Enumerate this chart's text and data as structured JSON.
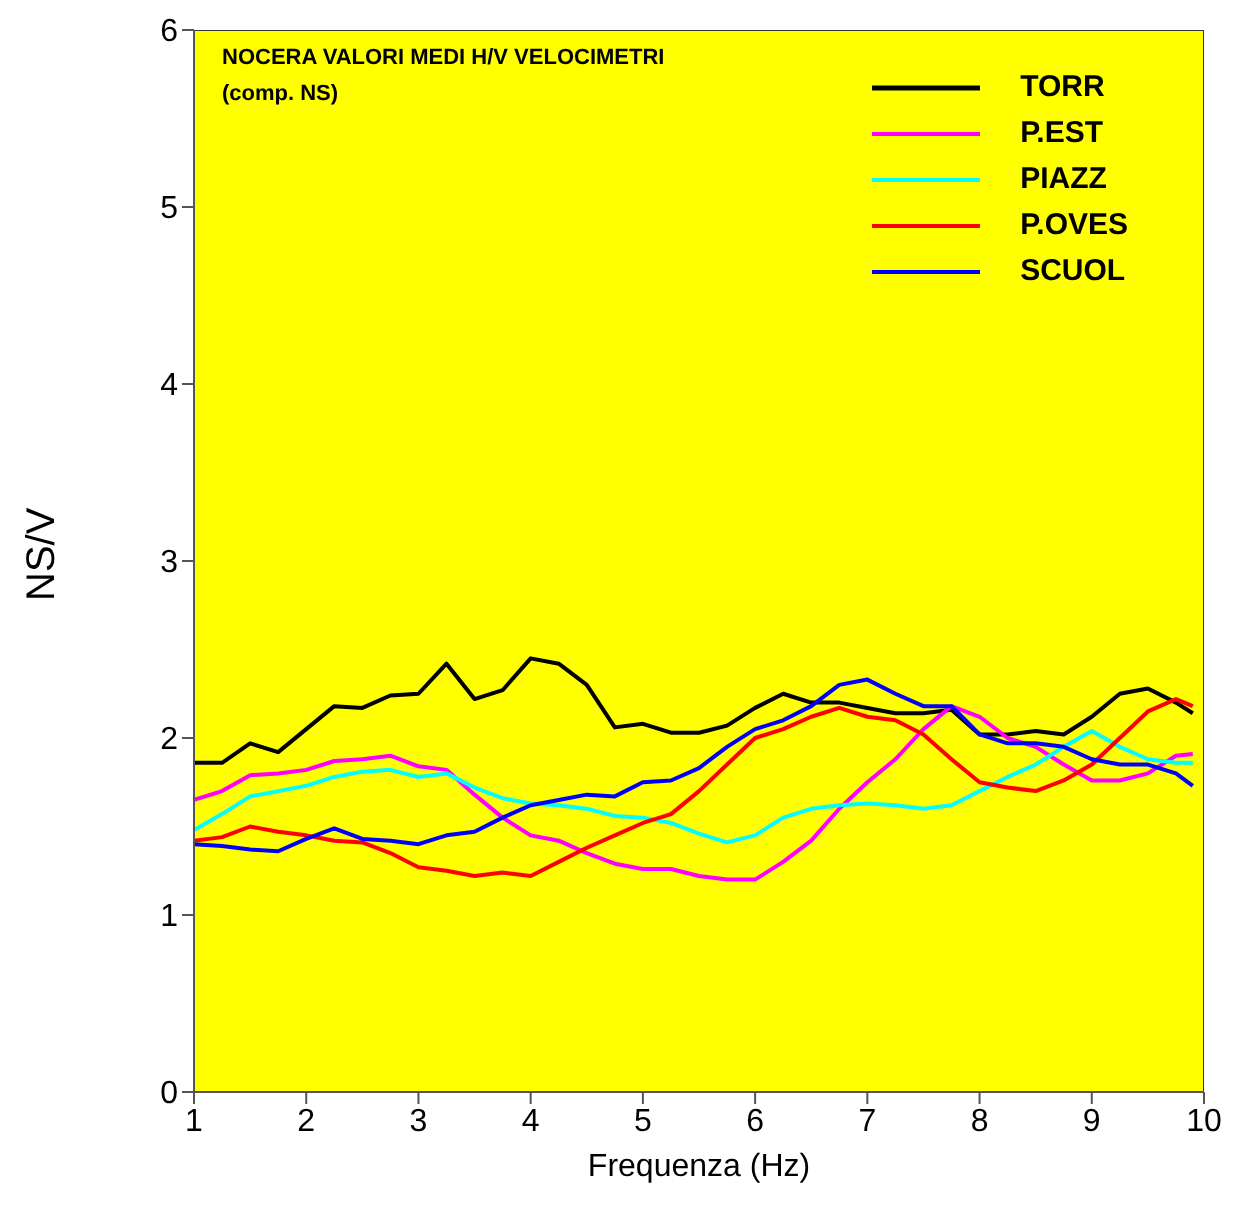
{
  "chart_data": {
    "type": "line",
    "title": "NOCERA VALORI MEDI H/V VELOCIMETRI",
    "subtitle": "(comp. NS)",
    "xlabel": "Frequenza (Hz)",
    "ylabel": "NS/V",
    "x": [
      1,
      1.25,
      1.5,
      1.75,
      2,
      2.25,
      2.5,
      2.75,
      3,
      3.25,
      3.5,
      3.75,
      4,
      4.25,
      4.5,
      4.75,
      5,
      5.25,
      5.5,
      5.75,
      6,
      6.25,
      6.5,
      6.75,
      7,
      7.25,
      7.5,
      7.75,
      8,
      8.25,
      8.5,
      8.75,
      9,
      9.25,
      9.5,
      9.75,
      9.9
    ],
    "series": [
      {
        "name": "TORR",
        "color": "#000000",
        "values": [
          1.86,
          1.86,
          1.97,
          1.92,
          2.05,
          2.18,
          2.17,
          2.24,
          2.25,
          2.42,
          2.22,
          2.27,
          2.45,
          2.42,
          2.3,
          2.06,
          2.08,
          2.03,
          2.03,
          2.07,
          2.17,
          2.25,
          2.2,
          2.2,
          2.17,
          2.14,
          2.14,
          2.16,
          2.02,
          2.02,
          2.04,
          2.02,
          2.12,
          2.25,
          2.28,
          2.2,
          2.14
        ]
      },
      {
        "name": "P.EST",
        "color": "#ff00ff",
        "values": [
          1.65,
          1.7,
          1.79,
          1.8,
          1.82,
          1.87,
          1.88,
          1.9,
          1.84,
          1.82,
          1.68,
          1.55,
          1.45,
          1.42,
          1.35,
          1.29,
          1.26,
          1.26,
          1.22,
          1.2,
          1.2,
          1.3,
          1.42,
          1.6,
          1.75,
          1.88,
          2.05,
          2.18,
          2.12,
          2.0,
          1.95,
          1.85,
          1.76,
          1.76,
          1.8,
          1.9,
          1.91
        ]
      },
      {
        "name": "PIAZZ",
        "color": "#00ffff",
        "values": [
          1.48,
          1.57,
          1.67,
          1.7,
          1.73,
          1.78,
          1.81,
          1.82,
          1.78,
          1.8,
          1.72,
          1.66,
          1.63,
          1.62,
          1.6,
          1.56,
          1.55,
          1.52,
          1.46,
          1.41,
          1.45,
          1.55,
          1.6,
          1.62,
          1.63,
          1.62,
          1.6,
          1.62,
          1.7,
          1.78,
          1.85,
          1.95,
          2.04,
          1.95,
          1.88,
          1.86,
          1.86
        ]
      },
      {
        "name": "P.OVES",
        "color": "#ff0000",
        "values": [
          1.42,
          1.44,
          1.5,
          1.47,
          1.45,
          1.42,
          1.41,
          1.35,
          1.27,
          1.25,
          1.22,
          1.24,
          1.22,
          1.3,
          1.38,
          1.45,
          1.52,
          1.57,
          1.7,
          1.85,
          2.0,
          2.05,
          2.12,
          2.17,
          2.12,
          2.1,
          2.02,
          1.88,
          1.75,
          1.72,
          1.7,
          1.76,
          1.85,
          2.0,
          2.15,
          2.22,
          2.18
        ]
      },
      {
        "name": "SCUOL",
        "color": "#0000ff",
        "values": [
          1.4,
          1.39,
          1.37,
          1.36,
          1.43,
          1.49,
          1.43,
          1.42,
          1.4,
          1.45,
          1.47,
          1.55,
          1.62,
          1.65,
          1.68,
          1.67,
          1.75,
          1.76,
          1.83,
          1.95,
          2.05,
          2.1,
          2.18,
          2.3,
          2.33,
          2.25,
          2.18,
          2.18,
          2.02,
          1.97,
          1.97,
          1.95,
          1.88,
          1.85,
          1.85,
          1.8,
          1.73
        ]
      }
    ],
    "xlim": [
      1,
      10
    ],
    "xticks": [
      1,
      2,
      3,
      4,
      5,
      6,
      7,
      8,
      9,
      10
    ],
    "ylim": [
      0,
      6
    ],
    "yticks": [
      0,
      1,
      2,
      3,
      4,
      5,
      6
    ],
    "legend": "top right"
  }
}
